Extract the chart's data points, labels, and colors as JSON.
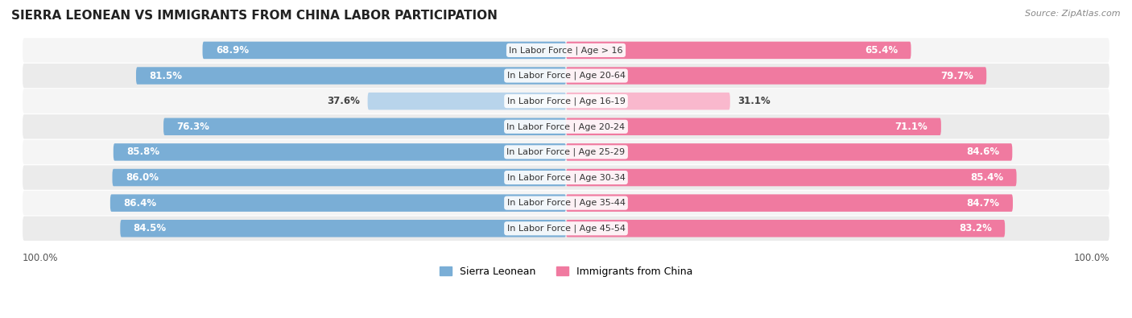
{
  "title": "SIERRA LEONEAN VS IMMIGRANTS FROM CHINA LABOR PARTICIPATION",
  "source": "Source: ZipAtlas.com",
  "categories": [
    "In Labor Force | Age > 16",
    "In Labor Force | Age 20-64",
    "In Labor Force | Age 16-19",
    "In Labor Force | Age 20-24",
    "In Labor Force | Age 25-29",
    "In Labor Force | Age 30-34",
    "In Labor Force | Age 35-44",
    "In Labor Force | Age 45-54"
  ],
  "sierra_values": [
    68.9,
    81.5,
    37.6,
    76.3,
    85.8,
    86.0,
    86.4,
    84.5
  ],
  "china_values": [
    65.4,
    79.7,
    31.1,
    71.1,
    84.6,
    85.4,
    84.7,
    83.2
  ],
  "sierra_color": "#7aaed6",
  "sierra_color_light": "#b8d4eb",
  "china_color": "#f07aa0",
  "china_color_light": "#f9b8cd",
  "bar_height": 0.68,
  "label_fontsize": 8.0,
  "title_fontsize": 11,
  "legend_fontsize": 9,
  "source_fontsize": 8,
  "value_fontsize": 8.5,
  "axis_label_fontsize": 8.5,
  "row_bg_even": "#f5f5f5",
  "row_bg_odd": "#ebebeb"
}
